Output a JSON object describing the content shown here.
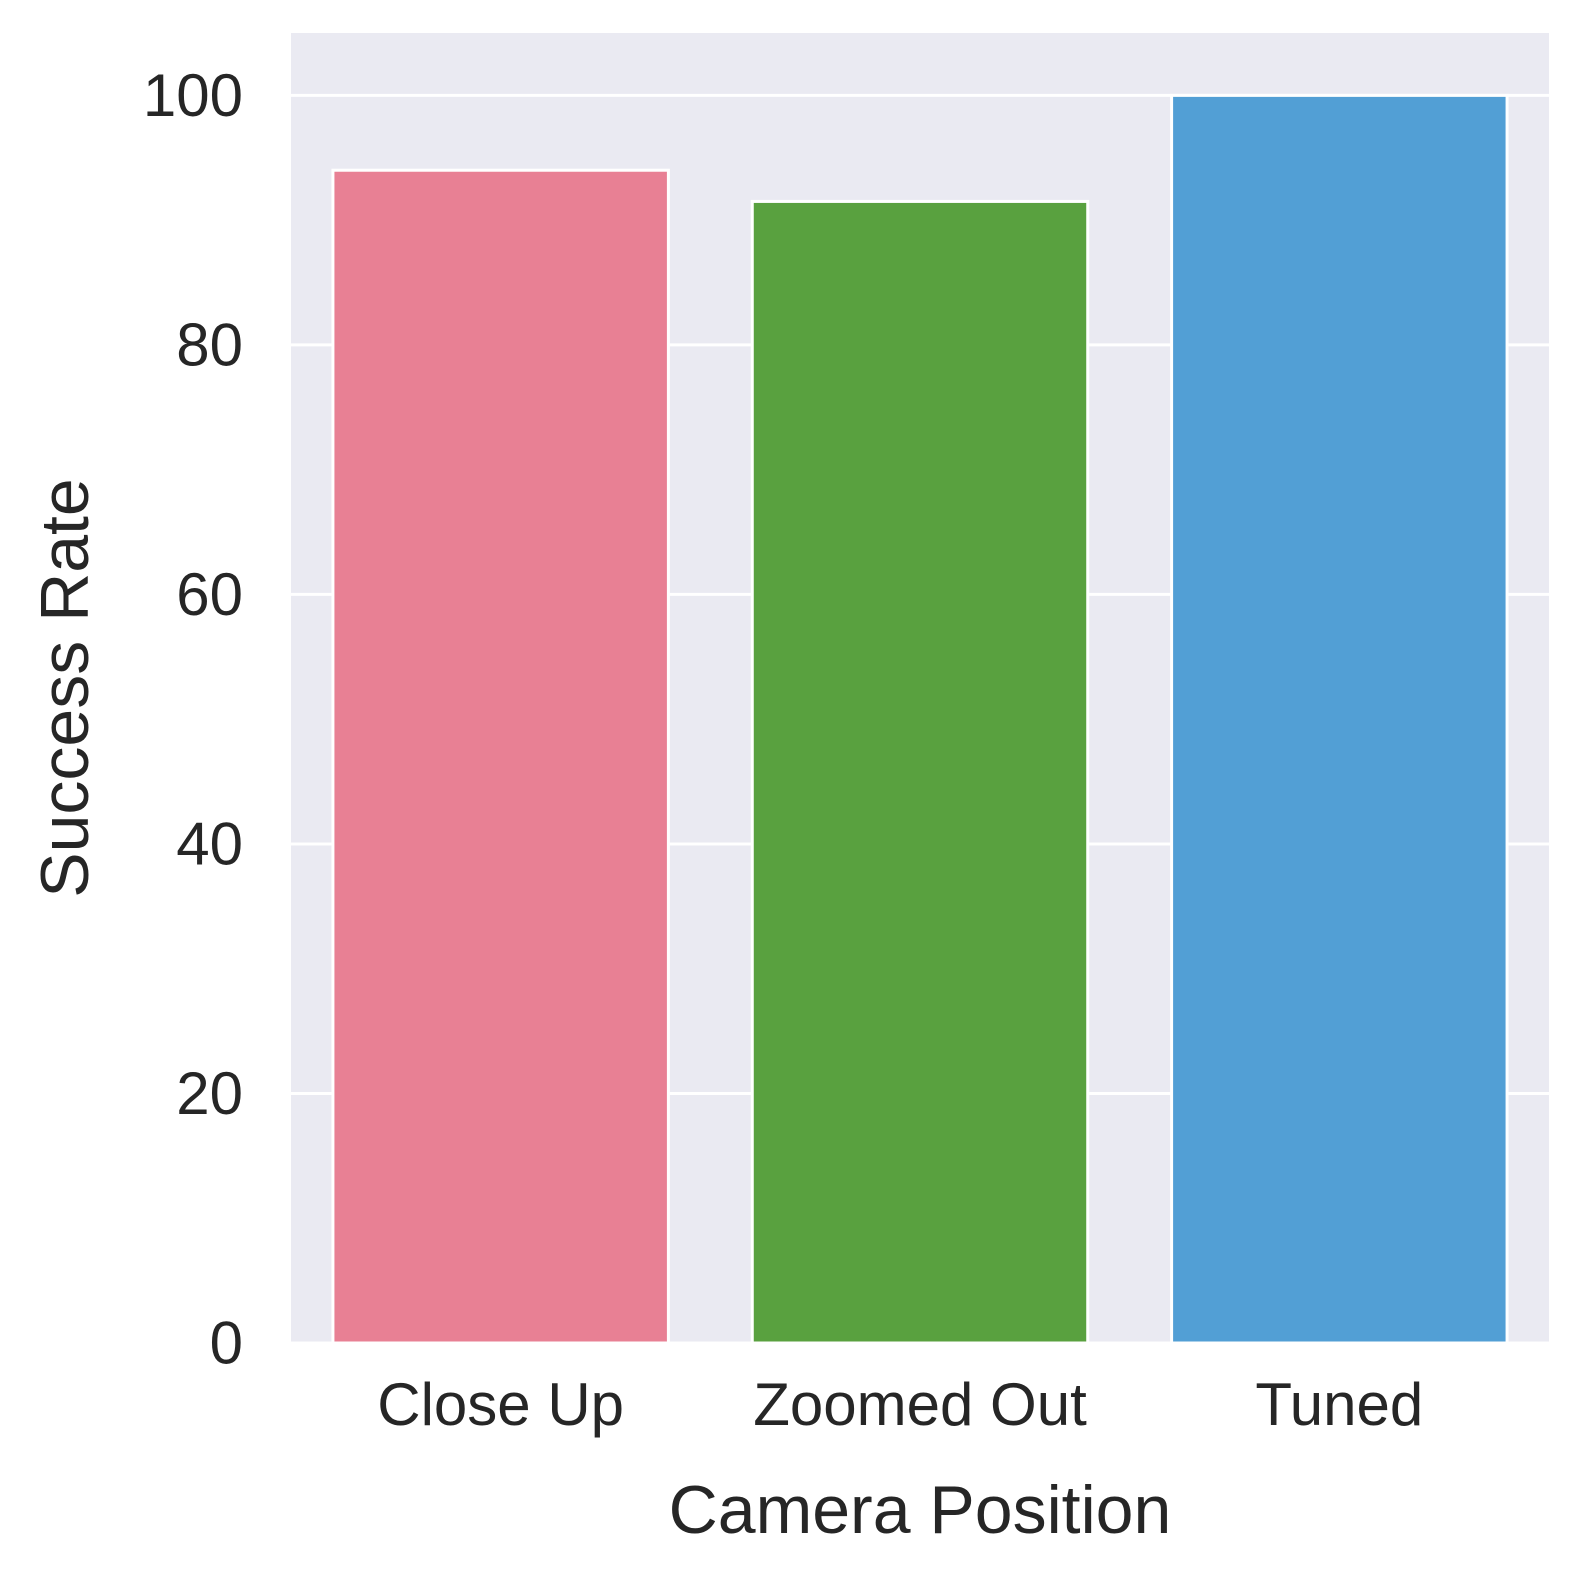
{
  "chart_data": {
    "type": "bar",
    "title": "",
    "xlabel": "Camera Position",
    "ylabel": "Success Rate",
    "categories": [
      "Close Up",
      "Zoomed Out",
      "Tuned"
    ],
    "values": [
      94,
      91.5,
      100
    ],
    "ylim": [
      0,
      105
    ],
    "yticks": [
      0,
      20,
      40,
      60,
      80,
      100
    ],
    "grid": true,
    "colors": {
      "plot_background": "#EAEAF2",
      "gridline": "#FFFFFF",
      "text": "#262626",
      "bars": [
        "#E88094",
        "#59A13F",
        "#529FD5"
      ]
    }
  }
}
